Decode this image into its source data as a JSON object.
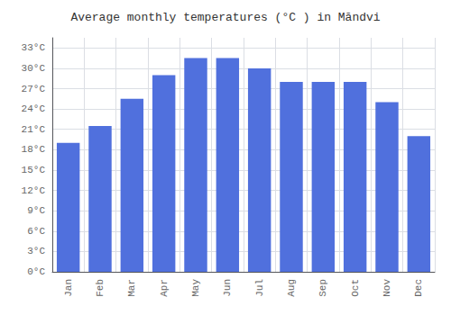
{
  "chart_data": {
    "type": "bar",
    "title": "Average monthly temperatures (°C ) in Māndvi",
    "categories": [
      "Jan",
      "Feb",
      "Mar",
      "Apr",
      "May",
      "Jun",
      "Jul",
      "Aug",
      "Sep",
      "Oct",
      "Nov",
      "Dec"
    ],
    "values": [
      19,
      21.5,
      25.5,
      29,
      31.5,
      31.5,
      30,
      28,
      28,
      28,
      25,
      20
    ],
    "ylim": [
      0,
      34.5
    ],
    "yticks": [
      {
        "value": 0,
        "label": "0°C"
      },
      {
        "value": 3,
        "label": "3°C"
      },
      {
        "value": 6,
        "label": "6°C"
      },
      {
        "value": 9,
        "label": "9°C"
      },
      {
        "value": 12,
        "label": "12°C"
      },
      {
        "value": 15,
        "label": "15°C"
      },
      {
        "value": 18,
        "label": "18°C"
      },
      {
        "value": 21,
        "label": "21°C"
      },
      {
        "value": 24,
        "label": "24°C"
      },
      {
        "value": 27,
        "label": "27°C"
      },
      {
        "value": 30,
        "label": "30°C"
      },
      {
        "value": 33,
        "label": "33°C"
      }
    ],
    "grid": true
  }
}
